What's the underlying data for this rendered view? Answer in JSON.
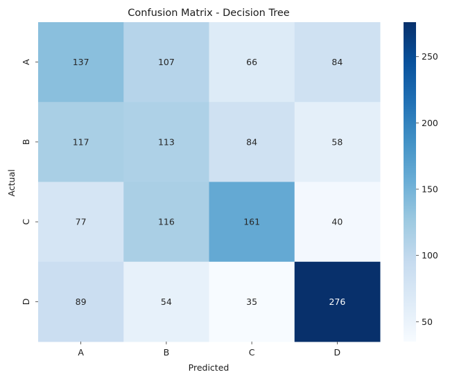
{
  "chart_data": {
    "type": "heatmap",
    "title": "Confusion Matrix - Decision Tree",
    "xlabel": "Predicted",
    "ylabel": "Actual",
    "x_categories": [
      "A",
      "B",
      "C",
      "D"
    ],
    "y_categories": [
      "A",
      "B",
      "C",
      "D"
    ],
    "values": [
      [
        137,
        107,
        66,
        84
      ],
      [
        117,
        113,
        84,
        58
      ],
      [
        77,
        116,
        161,
        40
      ],
      [
        89,
        54,
        35,
        276
      ]
    ],
    "colormap": "Blues",
    "color_range": [
      35,
      276
    ],
    "colorbar_ticks": [
      50,
      100,
      150,
      200,
      250
    ],
    "annotations": true
  }
}
